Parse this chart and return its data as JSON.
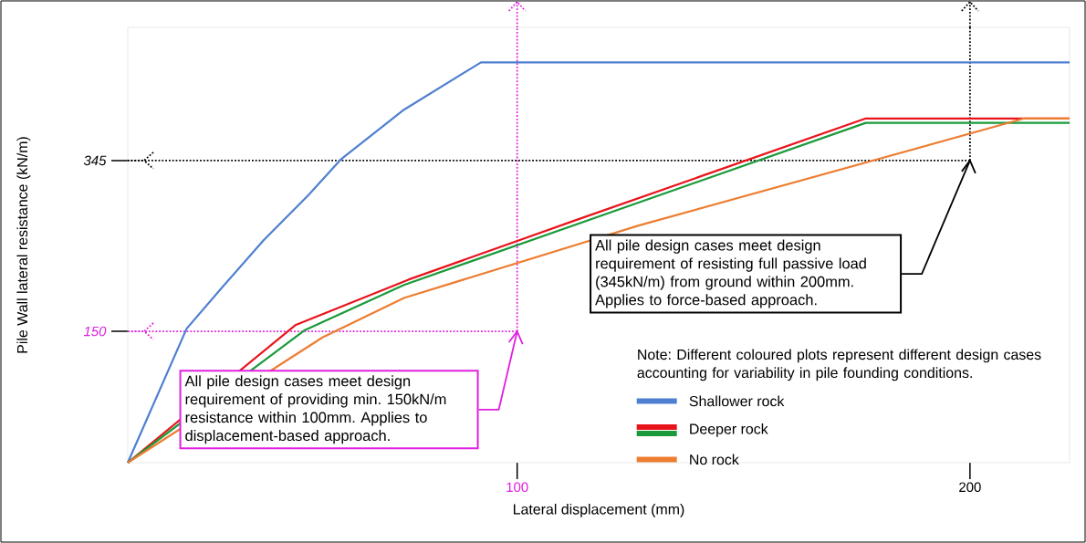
{
  "chart_data": {
    "type": "line",
    "xlabel": "Lateral displacement (mm)",
    "ylabel": "Pile Wall lateral resistance (kN/m)",
    "xlim": [
      14,
      222
    ],
    "ylim": [
      0,
      497
    ],
    "xticks": [
      100,
      200
    ],
    "yticks": [
      150,
      345
    ],
    "series": [
      {
        "name": "Shallower rock",
        "color": "#4f7fd0",
        "x": [
          14,
          27,
          35,
          44,
          54,
          61,
          75,
          92,
          222
        ],
        "values": [
          0,
          153,
          201,
          254,
          306,
          346,
          403,
          457,
          457
        ]
      },
      {
        "name": "Deeper rock",
        "color": "#e8141c",
        "x": [
          14,
          51,
          76,
          113,
          177,
          222
        ],
        "values": [
          0,
          157,
          209,
          277,
          393,
          393
        ]
      },
      {
        "color": "#1a9a3a",
        "x": [
          14,
          53,
          75,
          177,
          222
        ],
        "values": [
          0,
          151,
          203,
          388,
          388
        ]
      },
      {
        "name": "No rock",
        "color": "#ed7d31",
        "x": [
          14,
          57,
          75,
          127,
          212,
          222
        ],
        "values": [
          0,
          143,
          188,
          271,
          393,
          393
        ]
      }
    ],
    "ref_lines": [
      {
        "axis": "x",
        "value": 100,
        "color": "#e020e0",
        "line_style": "dotted"
      },
      {
        "axis": "y",
        "value": 150,
        "color": "#e020e0",
        "line_style": "dotted"
      },
      {
        "axis": "x",
        "value": 200,
        "color": "#000000",
        "line_style": "dotted"
      },
      {
        "axis": "y",
        "value": 345,
        "color": "#000000",
        "line_style": "dotted"
      }
    ],
    "annotations": [
      "All pile design cases meet design requirement of providing min. 150kN/m resistance within 100mm. Applies to displacement-based approach.",
      "All pile design cases meet design requirement of resisting full passive load (345kN/m) from ground within 200mm. Applies to force-based approach.",
      "Note: Different coloured plots represent different design cases accounting for variability in pile founding conditions."
    ],
    "legend": "bottom right",
    "grid": false,
    "marker": "none",
    "line_style": "solid"
  }
}
